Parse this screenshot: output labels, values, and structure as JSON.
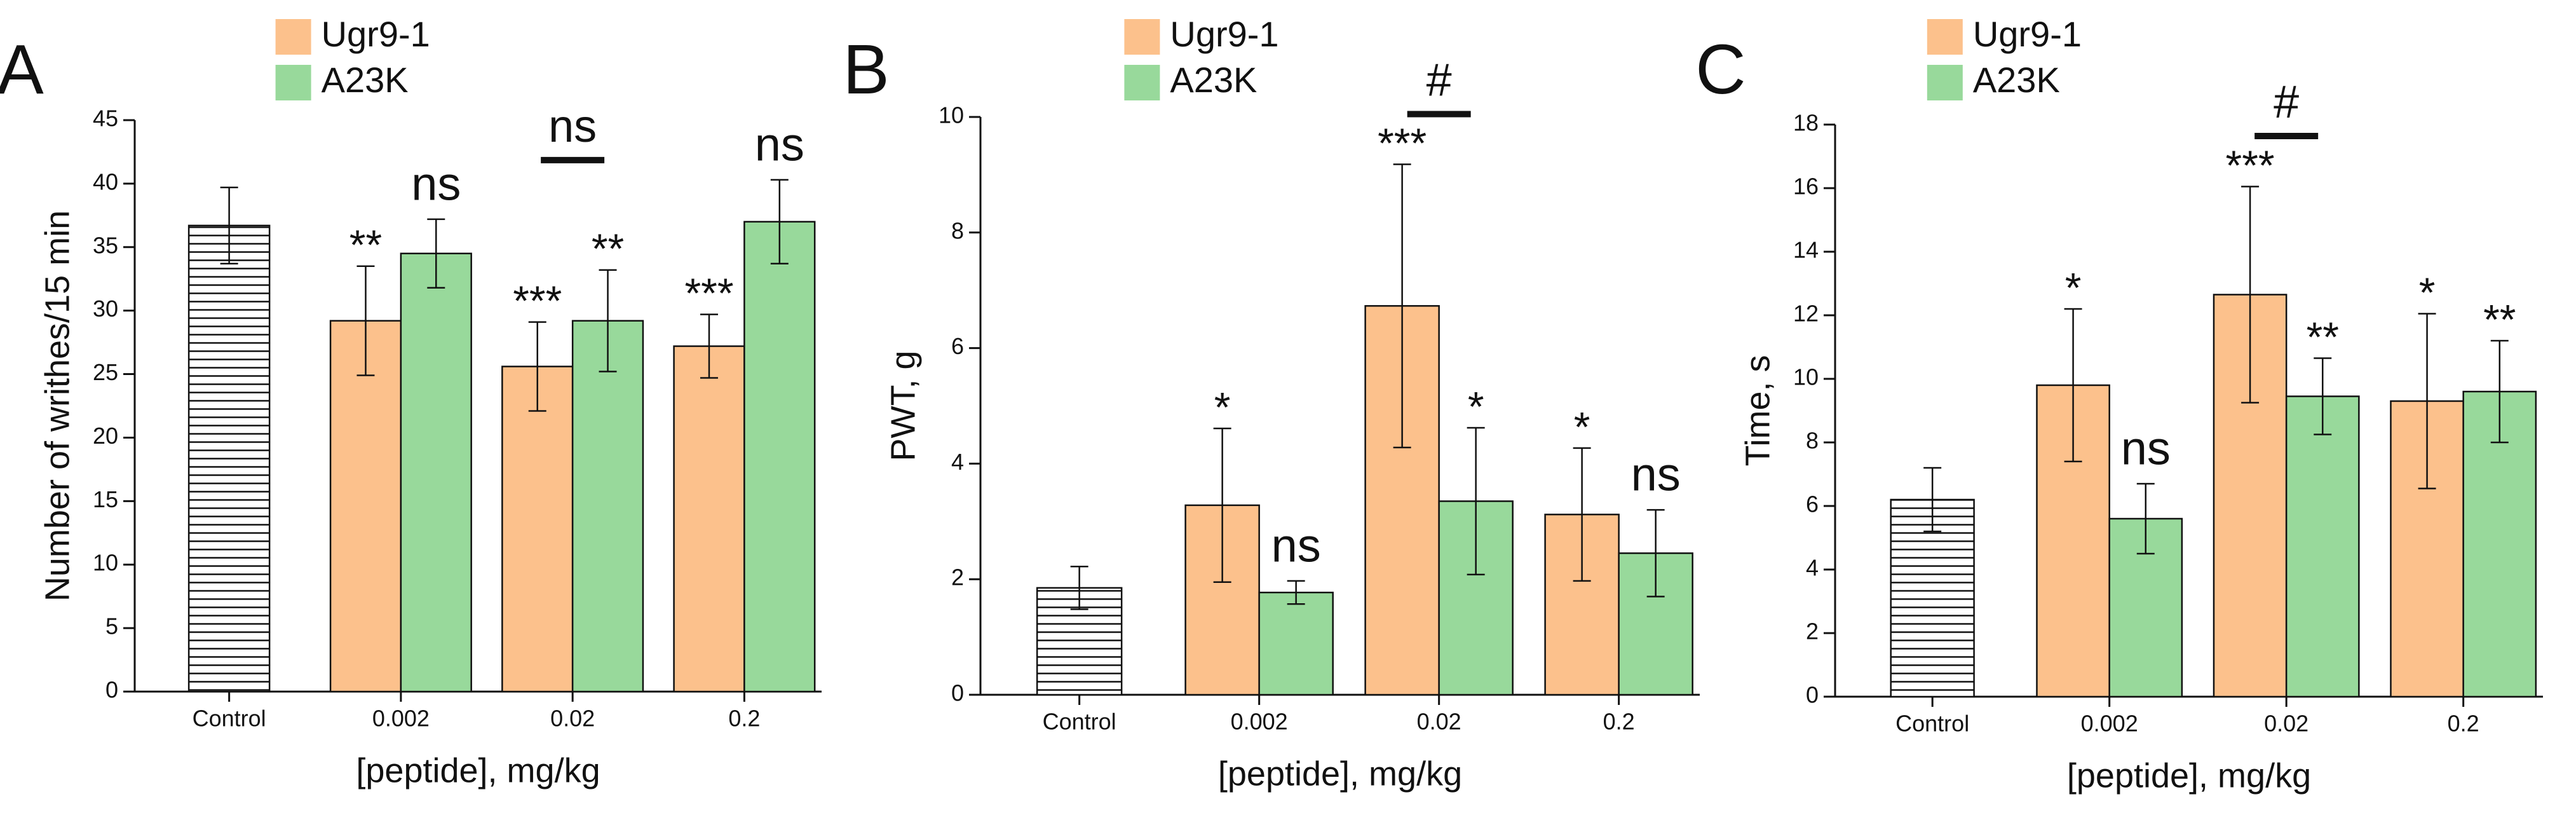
{
  "chart_data": [
    {
      "type": "bar",
      "panel": "A",
      "xlabel": "[peptide], mg/kg",
      "ylabel": "Number of writhes/15 min",
      "categories": [
        "Control",
        "0.002",
        "0.02",
        "0.2"
      ],
      "ylim": [
        0,
        45
      ],
      "yticks": [
        0,
        5,
        10,
        15,
        20,
        25,
        30,
        35,
        40,
        45
      ],
      "series": [
        {
          "hatch": true,
          "color": "#ffffff",
          "values": [
            36.7,
            null,
            null,
            null
          ],
          "errors": [
            3.0,
            null,
            null,
            null
          ]
        },
        {
          "name": "Ugr9-1",
          "color": "#fcc18c",
          "values": [
            null,
            29.2,
            25.6,
            27.2
          ],
          "errors": [
            null,
            4.3,
            3.5,
            2.5
          ],
          "annotations": [
            null,
            "**",
            "***",
            "***"
          ]
        },
        {
          "name": "A23K",
          "color": "#98d99b",
          "values": [
            null,
            34.5,
            29.2,
            37.0
          ],
          "errors": [
            null,
            2.7,
            4.0,
            3.3
          ],
          "annotations": [
            null,
            "ns",
            "**",
            "ns"
          ]
        }
      ],
      "bracket": {
        "category": 2,
        "label": "ns"
      }
    },
    {
      "type": "bar",
      "panel": "B",
      "xlabel": "[peptide], mg/kg",
      "ylabel": "PWT, g",
      "categories": [
        "Control",
        "0.002",
        "0.02",
        "0.2"
      ],
      "ylim": [
        0,
        10
      ],
      "yticks": [
        0,
        2,
        4,
        6,
        8,
        10
      ],
      "series": [
        {
          "hatch": true,
          "color": "#ffffff",
          "values": [
            1.85,
            null,
            null,
            null
          ],
          "errors": [
            0.37,
            null,
            null,
            null
          ]
        },
        {
          "name": "Ugr9-1",
          "color": "#fcc18c",
          "values": [
            null,
            3.28,
            6.73,
            3.12
          ],
          "errors": [
            null,
            1.33,
            2.45,
            1.15
          ],
          "annotations": [
            null,
            "*",
            "***",
            "*"
          ]
        },
        {
          "name": "A23K",
          "color": "#98d99b",
          "values": [
            null,
            1.77,
            3.35,
            2.45
          ],
          "errors": [
            null,
            0.2,
            1.27,
            0.75
          ],
          "annotations": [
            null,
            "ns",
            "*",
            "ns"
          ]
        }
      ],
      "bracket": {
        "category": 2,
        "label": "#"
      }
    },
    {
      "type": "bar",
      "panel": "C",
      "xlabel": "[peptide], mg/kg",
      "ylabel": "Time, s",
      "categories": [
        "Control",
        "0.002",
        "0.02",
        "0.2"
      ],
      "ylim": [
        0,
        18
      ],
      "yticks": [
        0,
        2,
        4,
        6,
        8,
        10,
        12,
        14,
        16,
        18
      ],
      "series": [
        {
          "hatch": true,
          "color": "#ffffff",
          "values": [
            6.2,
            null,
            null,
            null
          ],
          "errors": [
            1.0,
            null,
            null,
            null
          ]
        },
        {
          "name": "Ugr9-1",
          "color": "#fcc18c",
          "values": [
            null,
            9.8,
            12.65,
            9.3
          ],
          "errors": [
            null,
            2.4,
            3.4,
            2.75
          ],
          "annotations": [
            null,
            "*",
            "***",
            "*"
          ]
        },
        {
          "name": "A23K",
          "color": "#98d99b",
          "values": [
            null,
            5.6,
            9.45,
            9.6
          ],
          "errors": [
            null,
            1.1,
            1.2,
            1.6
          ],
          "annotations": [
            null,
            "ns",
            "**",
            "**"
          ]
        }
      ],
      "bracket": {
        "category": 2,
        "label": "#"
      }
    }
  ]
}
